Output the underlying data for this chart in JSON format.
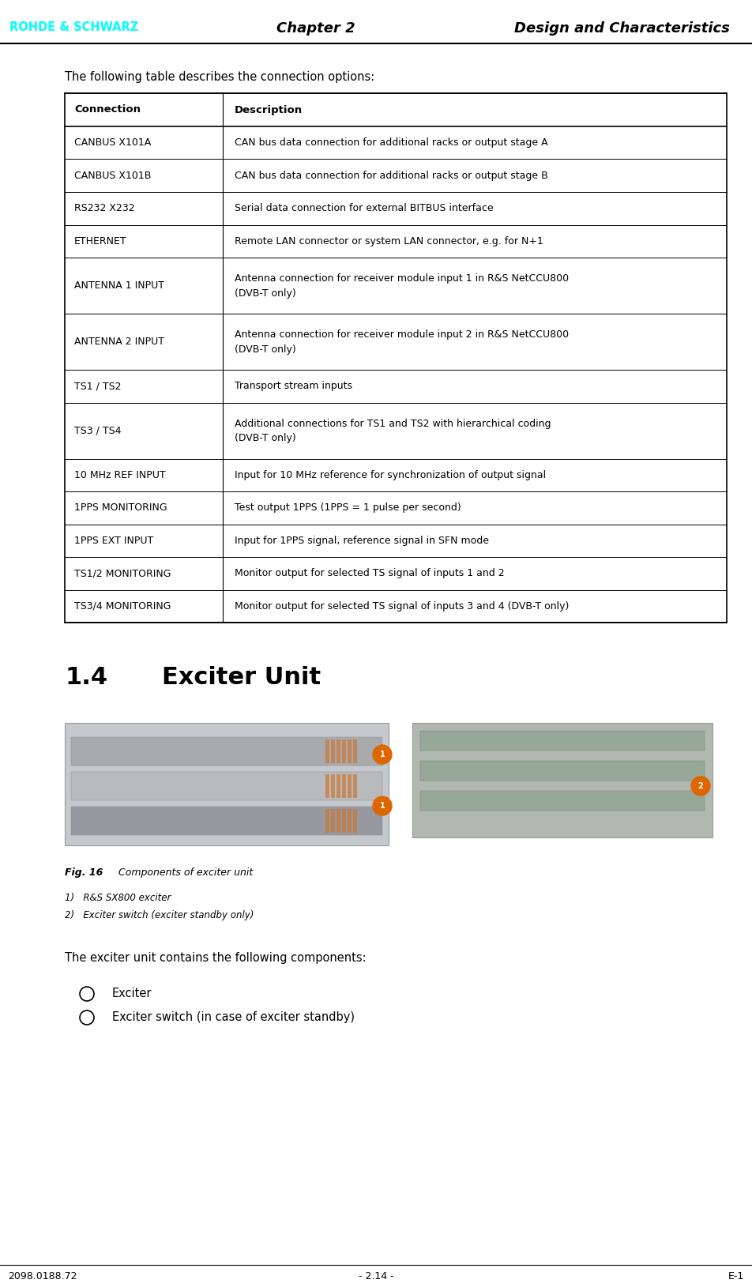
{
  "header_chapter": "Chapter 2",
  "header_title": "Design and Characteristics",
  "footer_left": "2098.0188.72",
  "footer_center": "- 2.14 -",
  "footer_right": "E-1",
  "logo_text": "ROHDE & SCHWARZ",
  "logo_color": "#00FFFF",
  "intro_text": "The following table describes the connection options:",
  "table_headers": [
    "Connection",
    "Description"
  ],
  "table_rows": [
    [
      "CANBUS X101A",
      "CAN bus data connection for additional racks or output stage A",
      false
    ],
    [
      "CANBUS X101B",
      "CAN bus data connection for additional racks or output stage B",
      false
    ],
    [
      "RS232 X232",
      "Serial data connection for external BITBUS interface",
      false
    ],
    [
      "ETHERNET",
      "Remote LAN connector or system LAN connector, e.g. for N+1",
      false
    ],
    [
      "ANTENNA 1 INPUT",
      "Antenna connection for receiver module input 1 in R&S NetCCU800\n(DVB-T only)",
      true
    ],
    [
      "ANTENNA 2 INPUT",
      "Antenna connection for receiver module input 2 in R&S NetCCU800\n(DVB-T only)",
      true
    ],
    [
      "TS1 / TS2",
      "Transport stream inputs",
      false
    ],
    [
      "TS3 / TS4",
      "Additional connections for TS1 and TS2 with hierarchical coding\n(DVB-T only)",
      true
    ],
    [
      "10 MHz REF INPUT",
      "Input for 10 MHz reference for synchronization of output signal",
      false
    ],
    [
      "1PPS MONITORING",
      "Test output 1PPS (1PPS = 1 pulse per second)",
      false
    ],
    [
      "1PPS EXT INPUT",
      "Input for 1PPS signal, reference signal in SFN mode",
      false
    ],
    [
      "TS1/2 MONITORING",
      "Monitor output for selected TS signal of inputs 1 and 2",
      false
    ],
    [
      "TS3/4 MONITORING",
      "Monitor output for selected TS signal of inputs 3 and 4 (DVB-T only)",
      false
    ]
  ],
  "section_number": "1.4",
  "section_title": "Exciter Unit",
  "fig_caption_bold": "Fig. 16",
  "fig_caption_normal": "  Components of exciter unit",
  "fig_note1": "1)   R&S SX800 exciter",
  "fig_note2": "2)   Exciter switch (exciter standby only)",
  "body_text": "The exciter unit contains the following components:",
  "bullet1": "Exciter",
  "bullet2": "Exciter switch (in case of exciter standby)",
  "bg_color": "#ffffff",
  "text_color": "#000000",
  "font_size_body": 10.5,
  "font_size_table": 9.5,
  "font_size_header_bold": 13,
  "font_size_section": 22,
  "font_size_footer": 9
}
